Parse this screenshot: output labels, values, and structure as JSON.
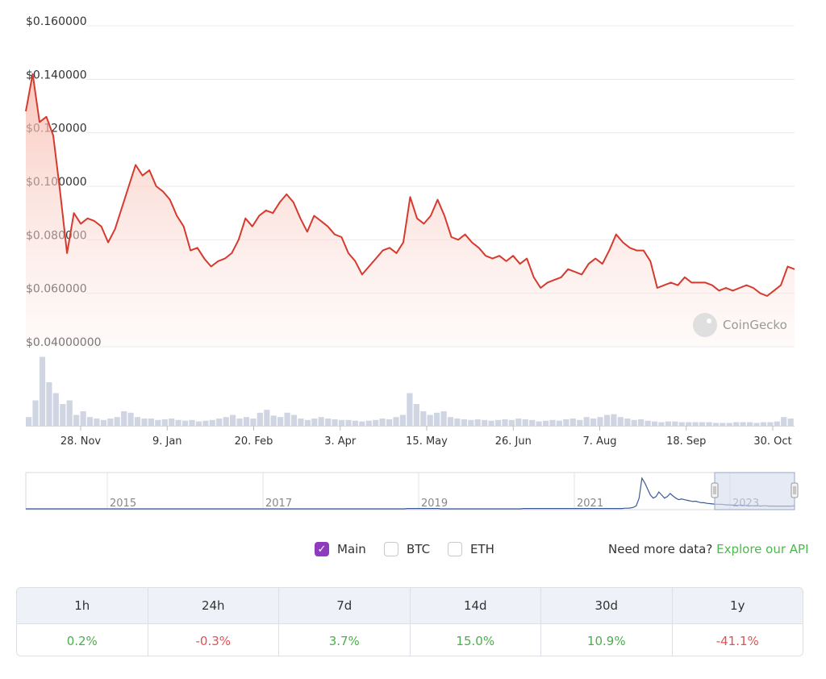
{
  "chart_data": {
    "type": "area",
    "y_ticks": [
      "$0.160000",
      "$0.140000",
      "$0.120000",
      "$0.100000",
      "$0.080000",
      "$0.060000",
      "$0.04000000"
    ],
    "ylim": [
      0.04,
      0.16
    ],
    "x_ticks": [
      "28. Nov",
      "9. Jan",
      "20. Feb",
      "3. Apr",
      "15. May",
      "26. Jun",
      "7. Aug",
      "18. Sep",
      "30. Oct"
    ],
    "watermark": "CoinGecko",
    "series": [
      {
        "values": [
          0.128,
          0.142,
          0.124,
          0.126,
          0.119,
          0.098,
          0.075,
          0.09,
          0.086,
          0.088,
          0.087,
          0.085,
          0.079,
          0.084,
          0.092,
          0.1,
          0.108,
          0.104,
          0.106,
          0.1,
          0.098,
          0.095,
          0.089,
          0.085,
          0.076,
          0.077,
          0.073,
          0.07,
          0.072,
          0.073,
          0.075,
          0.08,
          0.088,
          0.085,
          0.089,
          0.091,
          0.09,
          0.094,
          0.097,
          0.094,
          0.088,
          0.083,
          0.089,
          0.087,
          0.085,
          0.082,
          0.081,
          0.075,
          0.072,
          0.067,
          0.07,
          0.073,
          0.076,
          0.077,
          0.075,
          0.079,
          0.096,
          0.088,
          0.086,
          0.089,
          0.095,
          0.089,
          0.081,
          0.08,
          0.082,
          0.079,
          0.077,
          0.074,
          0.073,
          0.074,
          0.072,
          0.074,
          0.071,
          0.073,
          0.066,
          0.062,
          0.064,
          0.065,
          0.066,
          0.069,
          0.068,
          0.067,
          0.071,
          0.073,
          0.071,
          0.076,
          0.082,
          0.079,
          0.077,
          0.076,
          0.076,
          0.072,
          0.062,
          0.063,
          0.064,
          0.063,
          0.066,
          0.064,
          0.064,
          0.064,
          0.063,
          0.061,
          0.062,
          0.061,
          0.062,
          0.063,
          0.062,
          0.06,
          0.059,
          0.061,
          0.063,
          0.07,
          0.069
        ]
      }
    ],
    "volume": [
      0.12,
      0.35,
      0.95,
      0.6,
      0.45,
      0.3,
      0.35,
      0.15,
      0.2,
      0.12,
      0.1,
      0.08,
      0.1,
      0.12,
      0.2,
      0.18,
      0.12,
      0.1,
      0.1,
      0.08,
      0.09,
      0.1,
      0.08,
      0.07,
      0.08,
      0.06,
      0.07,
      0.08,
      0.1,
      0.12,
      0.15,
      0.1,
      0.12,
      0.1,
      0.18,
      0.22,
      0.14,
      0.12,
      0.18,
      0.15,
      0.1,
      0.08,
      0.1,
      0.12,
      0.1,
      0.09,
      0.08,
      0.08,
      0.07,
      0.06,
      0.07,
      0.08,
      0.1,
      0.09,
      0.12,
      0.15,
      0.45,
      0.3,
      0.2,
      0.15,
      0.18,
      0.2,
      0.12,
      0.1,
      0.09,
      0.08,
      0.09,
      0.08,
      0.07,
      0.08,
      0.09,
      0.08,
      0.1,
      0.09,
      0.08,
      0.06,
      0.07,
      0.08,
      0.07,
      0.09,
      0.1,
      0.08,
      0.12,
      0.1,
      0.12,
      0.15,
      0.16,
      0.12,
      0.1,
      0.08,
      0.09,
      0.07,
      0.06,
      0.05,
      0.06,
      0.06,
      0.05,
      0.05,
      0.05,
      0.05,
      0.05,
      0.04,
      0.04,
      0.04,
      0.05,
      0.05,
      0.05,
      0.04,
      0.05,
      0.05,
      0.06,
      0.12,
      0.1
    ]
  },
  "navigator": {
    "labels": [
      "2015",
      "2017",
      "2019",
      "2021",
      "2023"
    ],
    "values": [
      0.0,
      0.0,
      0.0,
      0.0,
      0.0,
      0.0,
      0.0,
      0.0,
      0.0,
      0.0,
      0.0,
      0.0,
      0.0,
      0.0,
      0.0,
      0.0,
      0.0,
      0.0,
      0.0,
      0.0,
      0.0,
      0.0,
      0.0,
      0.0,
      0.0,
      0.0,
      0.0,
      0.0,
      0.0,
      0.0,
      0.0,
      0.0,
      0.0,
      0.0,
      0.0,
      0.0,
      0.0,
      0.0,
      0.0,
      0.0,
      0.0,
      0.0,
      0.0,
      0.0,
      0.0,
      0.0,
      0.0,
      0.0,
      0.0,
      0.0,
      0.0,
      0.0,
      0.0,
      0.0,
      0.0,
      0.0,
      0.0,
      0.0,
      0.0,
      0.0,
      0.0,
      0.0,
      0.0,
      0.0,
      0.0,
      0.0,
      0.0,
      0.0,
      0.0,
      0.0,
      0.0,
      0.0,
      0.0,
      0.0,
      0.0,
      0.0,
      0.0,
      0.0,
      0.0,
      0.0,
      0.0,
      0.0,
      0.0,
      0.0,
      0.0,
      0.0,
      0.0,
      0.0,
      0.0,
      0.0,
      0.0,
      0.0,
      0.0,
      0.0,
      0.0,
      0.0,
      0.0,
      0.0,
      0.0,
      0.0,
      0.0,
      0.0,
      0.0,
      0.0,
      0.0,
      0.0,
      0.0,
      0.0,
      0.0,
      0.0,
      0.0,
      0.0,
      0.0,
      0.0,
      0.0,
      0.0,
      0.0,
      0.0,
      0.0,
      0.0,
      0.0,
      0.0,
      0.0,
      0.0,
      0.0,
      0.0,
      0.0,
      0.0,
      0.0,
      0.0,
      0.0,
      0.0,
      0.0,
      0.0,
      0.0,
      0.01,
      0.01,
      0.01,
      0.01,
      0.01,
      0.01,
      0.01,
      0.01,
      0.01,
      0.01,
      0.01,
      0.01,
      0.0,
      0.0,
      0.0,
      0.0,
      0.0,
      0.0,
      0.0,
      0.0,
      0.0,
      0.0,
      0.0,
      0.0,
      0.0,
      0.0,
      0.0,
      0.0,
      0.0,
      0.0,
      0.0,
      0.0,
      0.0,
      0.0,
      0.0,
      0.0,
      0.0,
      0.0,
      0.0,
      0.0,
      0.0,
      0.01,
      0.01,
      0.01,
      0.01,
      0.01,
      0.01,
      0.01,
      0.01,
      0.01,
      0.01,
      0.01,
      0.01,
      0.01,
      0.01,
      0.01,
      0.01,
      0.01,
      0.01,
      0.01,
      0.01,
      0.01,
      0.01,
      0.01,
      0.01,
      0.01,
      0.01,
      0.01,
      0.01,
      0.01,
      0.01,
      0.01,
      0.01,
      0.01,
      0.01,
      0.01,
      0.01,
      0.02,
      0.02,
      0.03,
      0.05,
      0.1,
      0.35,
      1.0,
      0.85,
      0.65,
      0.45,
      0.35,
      0.4,
      0.55,
      0.45,
      0.35,
      0.4,
      0.5,
      0.42,
      0.35,
      0.3,
      0.32,
      0.3,
      0.28,
      0.26,
      0.24,
      0.25,
      0.22,
      0.2,
      0.2,
      0.18,
      0.17,
      0.16,
      0.15,
      0.15,
      0.15,
      0.14,
      0.13,
      0.13,
      0.12,
      0.12,
      0.11,
      0.12,
      0.11,
      0.11,
      0.1,
      0.1,
      0.1,
      0.1,
      0.09,
      0.1,
      0.1,
      0.09,
      0.09,
      0.09,
      0.09,
      0.09,
      0.09,
      0.09,
      0.09,
      0.09,
      0.1
    ]
  },
  "options": {
    "main_label": "Main",
    "main_checked": true,
    "btc_label": "BTC",
    "eth_label": "ETH",
    "api_prompt": "Need more data?",
    "api_link": "Explore our API"
  },
  "performance": {
    "headers": [
      "1h",
      "24h",
      "7d",
      "14d",
      "30d",
      "1y"
    ],
    "values": [
      "0.2%",
      "-0.3%",
      "3.7%",
      "15.0%",
      "10.9%",
      "-41.1%"
    ],
    "colors": {
      "positive": "#4cae4c",
      "negative": "#e45050"
    }
  },
  "colors": {
    "line": "#d63a2f",
    "fill": "#fde8e4",
    "volume": "#cfd5e2",
    "grid": "#e9e9e9",
    "navigator_line": "#3c5a9a",
    "navigator_mask": "#d6dcee",
    "checkbox": "#8e3bbd",
    "api_link": "#4db84d"
  }
}
